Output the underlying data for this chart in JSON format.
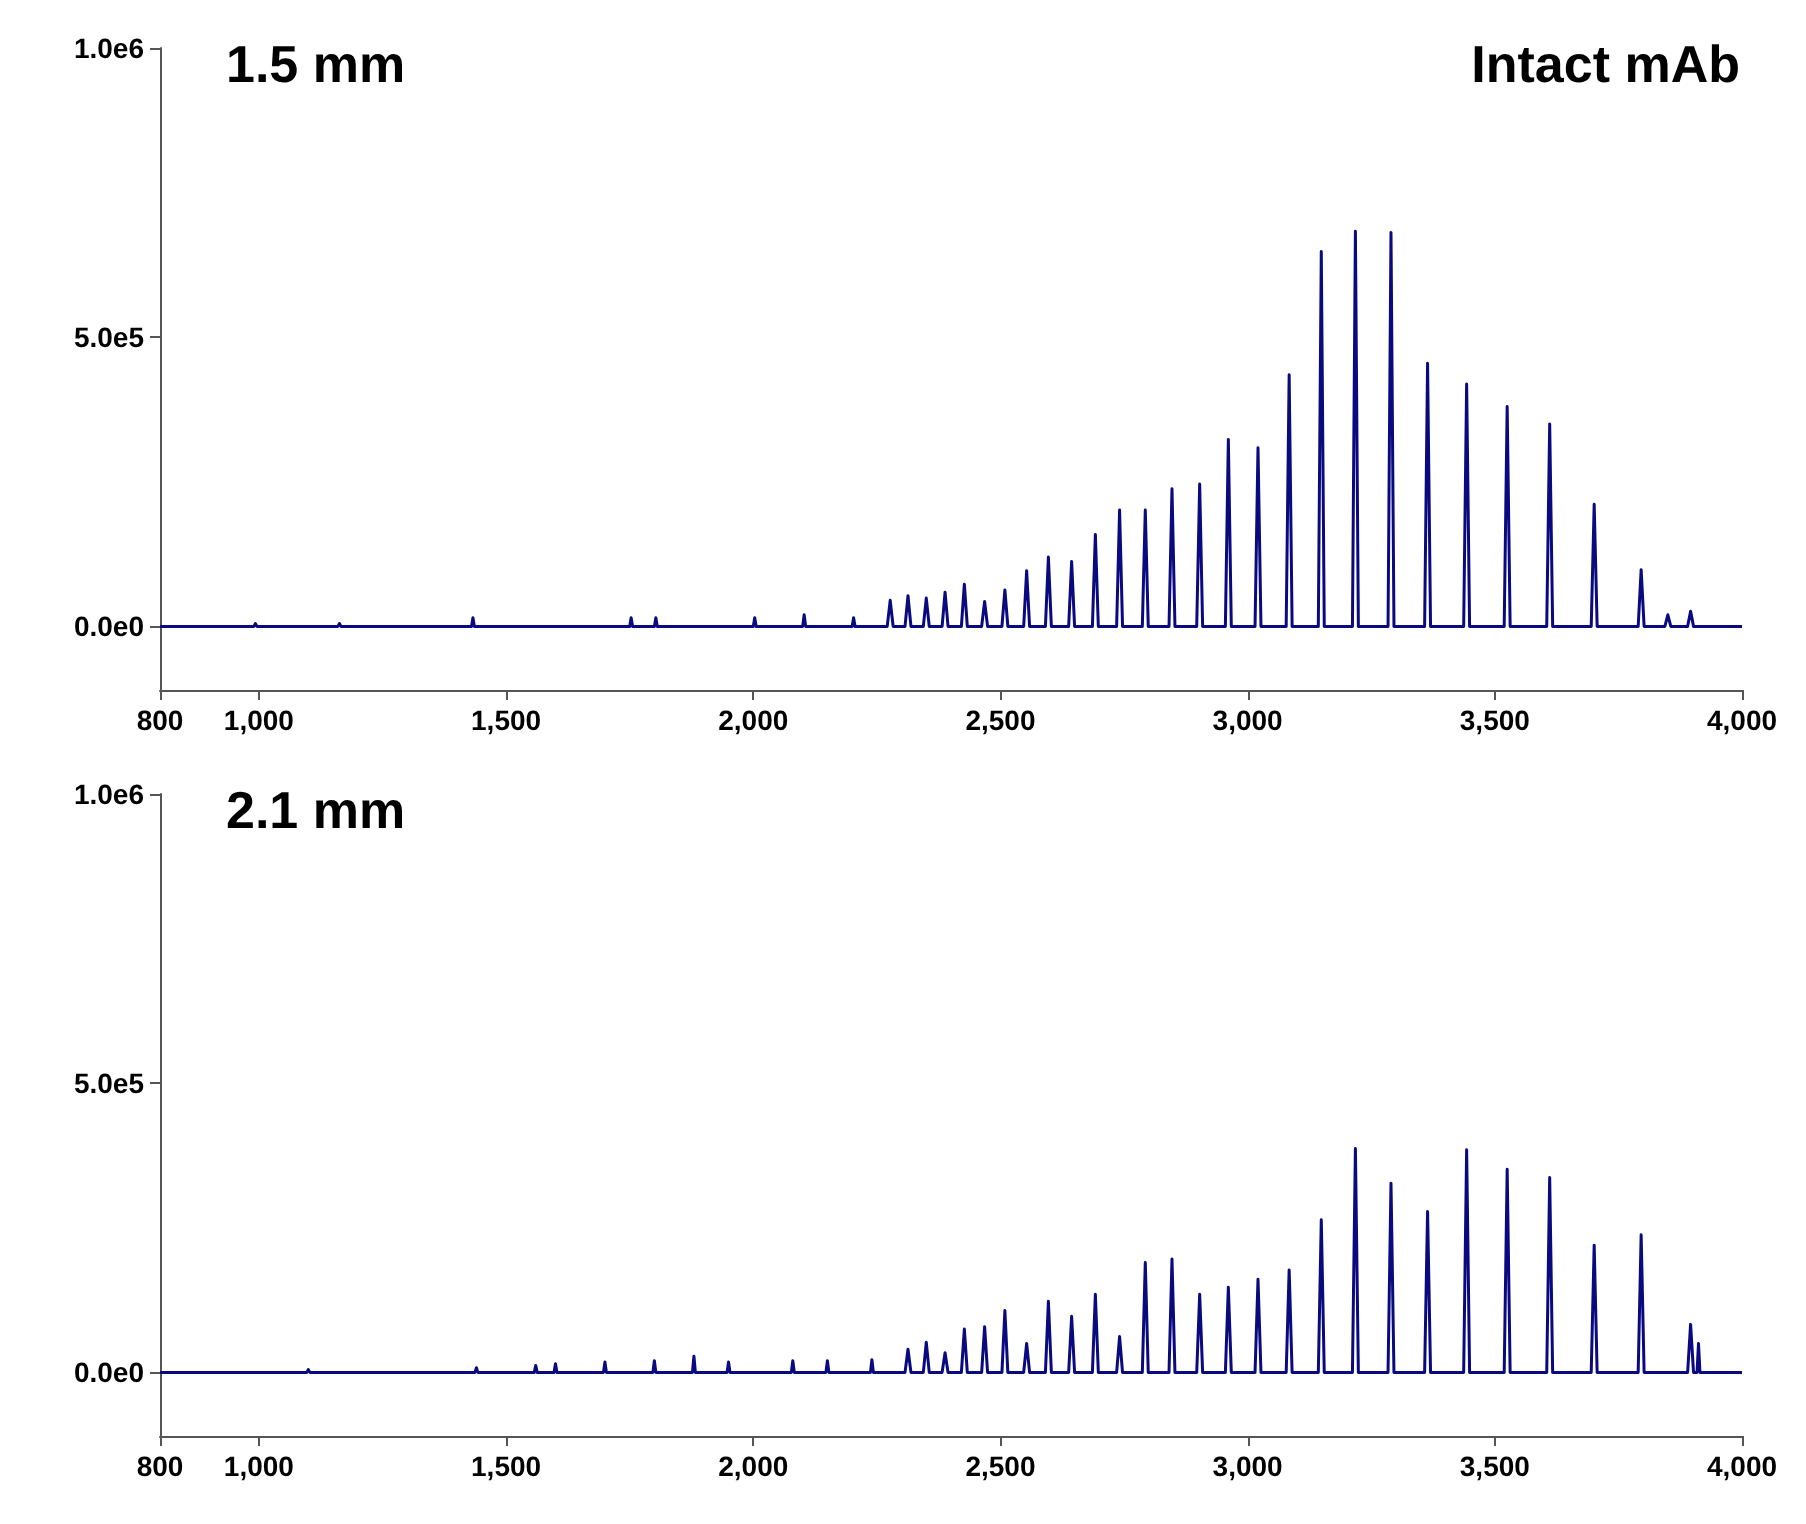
{
  "chart_data": [
    {
      "type": "line",
      "title": "1.5 mm",
      "annotations": [
        "Intact mAb"
      ],
      "grid": false,
      "xlim": [
        800,
        4000
      ],
      "ylim": [
        -110000,
        1000000
      ],
      "xticks": [
        800,
        {
          "value": 1000,
          "label": "1,000"
        },
        {
          "value": 1500,
          "label": "1,500"
        },
        {
          "value": 2000,
          "label": "2,000"
        },
        {
          "value": 2500,
          "label": "2,500"
        },
        {
          "value": 3000,
          "label": "3,000"
        },
        {
          "value": 3500,
          "label": "3,500"
        },
        {
          "value": 4000,
          "label": "4,000"
        }
      ],
      "yticks": [
        {
          "value": 0,
          "label": "0.0e0"
        },
        {
          "value": 500000,
          "label": "5.0e5"
        },
        {
          "value": 1000000,
          "label": "1.0e6"
        }
      ],
      "series": [
        {
          "color": "#0a0a80",
          "x": [
            800,
            990,
            993,
            996,
            1160,
            1163,
            1166,
            1430,
            1433,
            1436,
            1750,
            1753,
            1756,
            1800,
            1803,
            1806,
            2000,
            2003,
            2006,
            2100,
            2103,
            2106,
            2200,
            2203,
            2206,
            2271,
            2277,
            2283,
            2307,
            2313,
            2319,
            2344,
            2350,
            2356,
            2382,
            2388,
            2394,
            2421,
            2427,
            2433,
            2462,
            2468,
            2474,
            2503,
            2509,
            2515,
            2547,
            2553,
            2559,
            2591,
            2597,
            2603,
            2638,
            2644,
            2650,
            2686,
            2692,
            2698,
            2735,
            2741,
            2747,
            2787,
            2793,
            2799,
            2841,
            2847,
            2853,
            2897,
            2903,
            2909,
            2955,
            2961,
            2967,
            3015,
            3021,
            3027,
            3078,
            3084,
            3090,
            3143,
            3149,
            3155,
            3212,
            3218,
            3224,
            3284,
            3290,
            3296,
            3358,
            3364,
            3370,
            3437,
            3443,
            3449,
            3519,
            3525,
            3531,
            3605,
            3611,
            3617,
            3695,
            3701,
            3707,
            3790,
            3796,
            3802,
            3844,
            3850,
            3856,
            3890,
            3896,
            3902,
            4000
          ],
          "values": [
            0,
            0,
            5000,
            0,
            0,
            5000,
            0,
            0,
            15000,
            0,
            0,
            15000,
            0,
            0,
            15000,
            0,
            0,
            15000,
            0,
            0,
            20000,
            0,
            0,
            15000,
            0,
            0,
            45000,
            0,
            0,
            53000,
            0,
            0,
            49000,
            0,
            0,
            59000,
            0,
            0,
            73000,
            0,
            0,
            43000,
            0,
            0,
            63000,
            0,
            0,
            96000,
            0,
            0,
            120000,
            0,
            0,
            112000,
            0,
            0,
            159000,
            0,
            0,
            201000,
            0,
            0,
            201000,
            0,
            0,
            238000,
            0,
            0,
            246000,
            0,
            0,
            323000,
            0,
            0,
            309000,
            0,
            0,
            435000,
            0,
            0,
            648000,
            0,
            0,
            683000,
            0,
            0,
            681000,
            0,
            0,
            455000,
            0,
            0,
            419000,
            0,
            0,
            380000,
            0,
            0,
            350000,
            0,
            0,
            211000,
            0,
            0,
            98000,
            0,
            0,
            20000,
            0,
            0,
            26000,
            0,
            0
          ]
        }
      ]
    },
    {
      "type": "line",
      "title": "2.1 mm",
      "grid": false,
      "xlim": [
        800,
        4000
      ],
      "ylim": [
        -110000,
        1000000
      ],
      "xticks": [
        800,
        {
          "value": 1000,
          "label": "1,000"
        },
        {
          "value": 1500,
          "label": "1,500"
        },
        {
          "value": 2000,
          "label": "2,000"
        },
        {
          "value": 2500,
          "label": "2,500"
        },
        {
          "value": 3000,
          "label": "3,000"
        },
        {
          "value": 3500,
          "label": "3,500"
        },
        {
          "value": 4000,
          "label": "4,000"
        }
      ],
      "yticks": [
        {
          "value": 0,
          "label": "0.0e0"
        },
        {
          "value": 500000,
          "label": "5.0e5"
        },
        {
          "value": 1000000,
          "label": "1.0e6"
        }
      ],
      "series": [
        {
          "color": "#0a0a80",
          "x": [
            800,
            1097,
            1100,
            1103,
            1437,
            1440,
            1443,
            1557,
            1560,
            1563,
            1597,
            1600,
            1603,
            1697,
            1700,
            1703,
            1797,
            1800,
            1803,
            1877,
            1880,
            1883,
            1947,
            1950,
            1953,
            2077,
            2080,
            2083,
            2147,
            2150,
            2153,
            2237,
            2240,
            2243,
            2307,
            2313,
            2319,
            2344,
            2350,
            2356,
            2382,
            2388,
            2394,
            2421,
            2427,
            2433,
            2462,
            2468,
            2474,
            2503,
            2509,
            2515,
            2547,
            2553,
            2559,
            2591,
            2597,
            2603,
            2638,
            2644,
            2650,
            2686,
            2692,
            2698,
            2735,
            2741,
            2747,
            2787,
            2793,
            2799,
            2841,
            2847,
            2853,
            2897,
            2903,
            2909,
            2955,
            2961,
            2967,
            3015,
            3021,
            3027,
            3078,
            3084,
            3090,
            3143,
            3149,
            3155,
            3212,
            3218,
            3224,
            3284,
            3290,
            3296,
            3358,
            3364,
            3370,
            3437,
            3443,
            3449,
            3519,
            3525,
            3531,
            3605,
            3611,
            3617,
            3695,
            3701,
            3707,
            3790,
            3796,
            3802,
            3890,
            3896,
            3902,
            3909,
            3912,
            3915,
            4000
          ],
          "values": [
            0,
            0,
            5000,
            0,
            0,
            8000,
            0,
            0,
            12000,
            0,
            0,
            15000,
            0,
            0,
            18000,
            0,
            0,
            20000,
            0,
            0,
            28000,
            0,
            0,
            18000,
            0,
            0,
            20000,
            0,
            0,
            20000,
            0,
            0,
            22000,
            0,
            0,
            40000,
            0,
            0,
            52000,
            0,
            0,
            34000,
            0,
            0,
            75000,
            0,
            0,
            79000,
            0,
            0,
            107000,
            0,
            0,
            50000,
            0,
            0,
            123000,
            0,
            0,
            97000,
            0,
            0,
            135000,
            0,
            0,
            62000,
            0,
            0,
            190000,
            0,
            0,
            196000,
            0,
            0,
            135000,
            0,
            0,
            147000,
            0,
            0,
            161000,
            0,
            0,
            177000,
            0,
            0,
            264000,
            0,
            0,
            387000,
            0,
            0,
            327000,
            0,
            0,
            278000,
            0,
            0,
            385000,
            0,
            0,
            351000,
            0,
            0,
            337000,
            0,
            0,
            220000,
            0,
            0,
            238000,
            0,
            0,
            83000,
            0,
            0,
            50000,
            0,
            0
          ]
        }
      ]
    }
  ]
}
